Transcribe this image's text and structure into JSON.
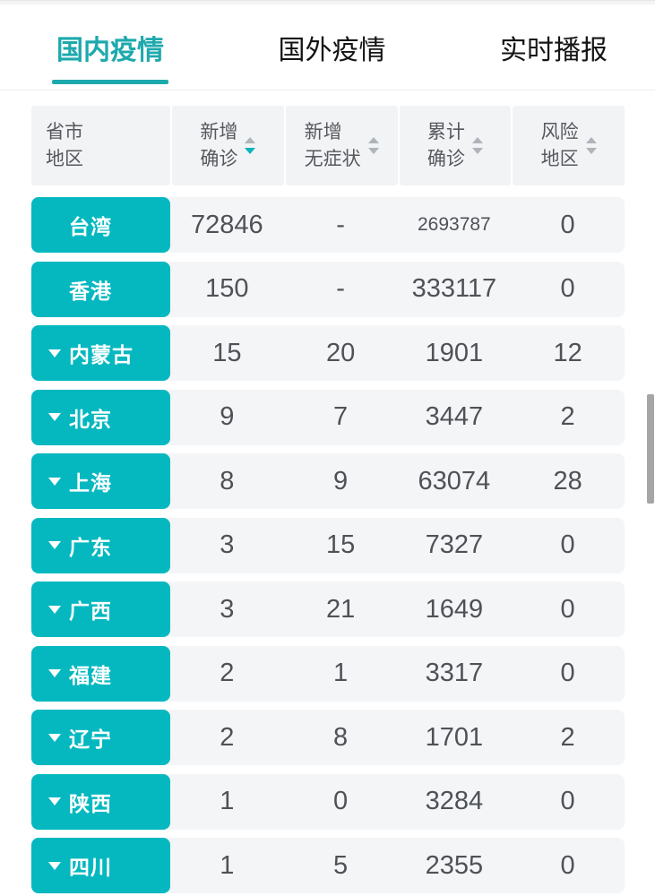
{
  "colors": {
    "accent": "#05b8c0",
    "tab_active": "#1da9ad",
    "tab_text": "#151515",
    "header_bg": "#f2f3f5",
    "row_bg": "#f4f5f7",
    "header_text": "#55595e",
    "number_text": "#4e5256",
    "sort_inactive": "#aeb4ba",
    "sort_active": "#0cb4bd",
    "hairline": "#ededed",
    "top_strip": "#f4f4f4",
    "top_strip_border": "#e7e7e7",
    "scrollbar": "#a6a6a6",
    "page_bg": "#ffffff"
  },
  "tabs": [
    {
      "label": "国内疫情",
      "active": true
    },
    {
      "label": "国外疫情",
      "active": false
    },
    {
      "label": "实时播报",
      "active": false
    }
  ],
  "table": {
    "columns": [
      {
        "line1": "省市",
        "line2": "地区",
        "sortable": false,
        "sort": "none"
      },
      {
        "line1": "新增",
        "line2": "确诊",
        "sortable": true,
        "sort": "desc"
      },
      {
        "line1": "新增",
        "line2": "无症状",
        "sortable": true,
        "sort": "none"
      },
      {
        "line1": "累计",
        "line2": "确诊",
        "sortable": true,
        "sort": "none"
      },
      {
        "line1": "风险",
        "line2": "地区",
        "sortable": true,
        "sort": "none"
      }
    ],
    "rows": [
      {
        "region": "台湾",
        "expandable": false,
        "new_confirmed": "72846",
        "new_asymptomatic": "-",
        "total_confirmed": "2693787",
        "risk_areas": "0"
      },
      {
        "region": "香港",
        "expandable": false,
        "new_confirmed": "150",
        "new_asymptomatic": "-",
        "total_confirmed": "333117",
        "risk_areas": "0"
      },
      {
        "region": "内蒙古",
        "expandable": true,
        "new_confirmed": "15",
        "new_asymptomatic": "20",
        "total_confirmed": "1901",
        "risk_areas": "12"
      },
      {
        "region": "北京",
        "expandable": true,
        "new_confirmed": "9",
        "new_asymptomatic": "7",
        "total_confirmed": "3447",
        "risk_areas": "2"
      },
      {
        "region": "上海",
        "expandable": true,
        "new_confirmed": "8",
        "new_asymptomatic": "9",
        "total_confirmed": "63074",
        "risk_areas": "28"
      },
      {
        "region": "广东",
        "expandable": true,
        "new_confirmed": "3",
        "new_asymptomatic": "15",
        "total_confirmed": "7327",
        "risk_areas": "0"
      },
      {
        "region": "广西",
        "expandable": true,
        "new_confirmed": "3",
        "new_asymptomatic": "21",
        "total_confirmed": "1649",
        "risk_areas": "0"
      },
      {
        "region": "福建",
        "expandable": true,
        "new_confirmed": "2",
        "new_asymptomatic": "1",
        "total_confirmed": "3317",
        "risk_areas": "0"
      },
      {
        "region": "辽宁",
        "expandable": true,
        "new_confirmed": "2",
        "new_asymptomatic": "8",
        "total_confirmed": "1701",
        "risk_areas": "2"
      },
      {
        "region": "陕西",
        "expandable": true,
        "new_confirmed": "1",
        "new_asymptomatic": "0",
        "total_confirmed": "3284",
        "risk_areas": "0"
      },
      {
        "region": "四川",
        "expandable": true,
        "new_confirmed": "1",
        "new_asymptomatic": "5",
        "total_confirmed": "2355",
        "risk_areas": "0"
      }
    ]
  },
  "icons": {
    "expand-triangle-icon": "white down-pointing css triangle",
    "sort-asc-icon": "up-pointing css triangle",
    "sort-desc-icon": "down-pointing css triangle"
  },
  "scrollbar": {
    "visible": true
  }
}
